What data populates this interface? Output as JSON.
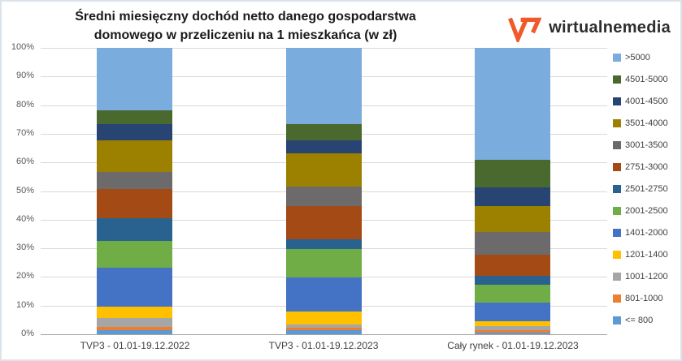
{
  "title": {
    "line1": "Średni miesięczny dochód netto danego gospodarstwa",
    "line2": "domowego w przeliczeniu na 1 mieszkańca (w zł)"
  },
  "logo": {
    "text": "wirtualnemedia",
    "mark_color": "#f1592a",
    "text_color": "#2d2d2d"
  },
  "chart_data": {
    "type": "bar",
    "subtype": "100%-stacked-column",
    "title": "Średni miesięczny dochód netto danego gospodarstwa domowego w przeliczeniu na 1 mieszkańca (w zł)",
    "categories": [
      "TVP3 - 01.01-19.12.2022",
      "TVP3 - 01.01-19.12.2023",
      "Cały rynek - 01.01-19.12.2023"
    ],
    "y_ticks": [
      "100%",
      "90%",
      "80%",
      "70%",
      "60%",
      "50%",
      "40%",
      "30%",
      "20%",
      "10%",
      "0%"
    ],
    "ylim": [
      0,
      100
    ],
    "grid": true,
    "legend_position": "right",
    "stacking_order": "bottom-to-top",
    "series": [
      {
        "name": "<= 800",
        "color": "#5b9bd5",
        "values": [
          1.4,
          1.4,
          0.6
        ]
      },
      {
        "name": "801-1000",
        "color": "#ed7d31",
        "values": [
          1.1,
          0.9,
          0.7
        ]
      },
      {
        "name": "1001-1200",
        "color": "#a6a6a6",
        "values": [
          3.3,
          1.2,
          1.6
        ]
      },
      {
        "name": "1201-1400",
        "color": "#ffc000",
        "values": [
          3.7,
          4.3,
          1.7
        ]
      },
      {
        "name": "1401-2000",
        "color": "#4472c4",
        "values": [
          13.8,
          12.0,
          6.4
        ]
      },
      {
        "name": "2001-2500",
        "color": "#70ad47",
        "values": [
          9.4,
          10.0,
          6.2
        ]
      },
      {
        "name": "2501-2750",
        "color": "#2a628f",
        "values": [
          7.7,
          3.3,
          3.3
        ]
      },
      {
        "name": "2751-3000",
        "color": "#a34a15",
        "values": [
          10.3,
          11.7,
          7.3
        ]
      },
      {
        "name": "3001-3500",
        "color": "#6c6a6a",
        "values": [
          6.0,
          6.8,
          7.8
        ]
      },
      {
        "name": "3501-4000",
        "color": "#9c8000",
        "values": [
          11.0,
          11.7,
          9.3
        ]
      },
      {
        "name": "4001-4500",
        "color": "#274472",
        "values": [
          5.8,
          4.3,
          6.4
        ]
      },
      {
        "name": "4501-5000",
        "color": "#4a692e",
        "values": [
          4.6,
          5.9,
          9.5
        ]
      },
      {
        "name": ">5000",
        "color": "#7bacde",
        "values": [
          21.9,
          26.5,
          39.2
        ]
      }
    ]
  }
}
